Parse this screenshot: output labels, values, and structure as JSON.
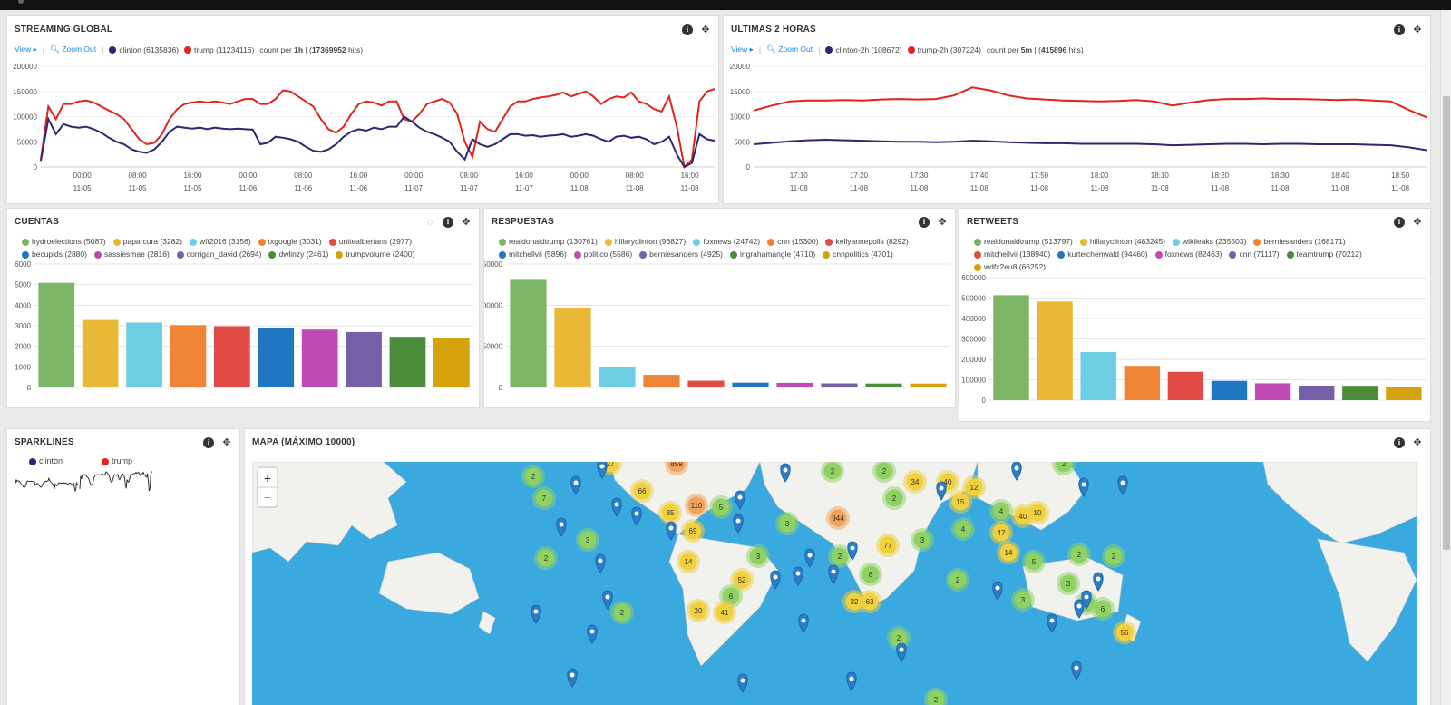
{
  "colors": {
    "clinton": "#2a2870",
    "trump": "#e2231a",
    "accent": "#1e88e5",
    "palette": [
      "#7bb565",
      "#e9b837",
      "#6dcde3",
      "#ef8436",
      "#e04b45",
      "#1f77c2",
      "#c04bb6",
      "#7660a8",
      "#4a8c3a",
      "#d4a20c"
    ]
  },
  "streaming": {
    "title": "STREAMING GLOBAL",
    "view": "View",
    "zoom": "Zoom Out",
    "s1": "clinton (6135836)",
    "s2": "trump (11234116)",
    "count_pre": "count per ",
    "count_unit": "1h",
    "count_mid": " | (",
    "hits": "17369952",
    "count_post": " hits)"
  },
  "last2h": {
    "title": "ULTIMAS 2 HORAS",
    "view": "View",
    "zoom": "Zoom Out",
    "s1": "clinton-2h (108672)",
    "s2": "trump-2h (307224)",
    "count_pre": "count per ",
    "count_unit": "5m",
    "count_mid": " | (",
    "hits": "415896",
    "count_post": " hits)"
  },
  "cuentas": {
    "title": "CUENTAS",
    "legend": [
      "hydroelections (5087)",
      "paparcura (3282)",
      "wft2016 (3156)",
      "txgoogle (3031)",
      "unitealbertans (2977)",
      "becupids (2880)",
      "sassiesmae (2816)",
      "corrigan_david (2694)",
      "dwlinzy (2461)",
      "trumpvolume (2400)"
    ]
  },
  "respuestas": {
    "title": "RESPUESTAS",
    "legend": [
      "realdonaldtrump (130761)",
      "hillaryclinton (96827)",
      "foxnews (24742)",
      "cnn (15300)",
      "kellyannepolls (8292)",
      "mitchellvii (5896)",
      "politico (5586)",
      "berniesanders (4925)",
      "ingrahamangle (4710)",
      "cnnpolitics (4701)"
    ]
  },
  "retweets": {
    "title": "RETWEETS",
    "legend": [
      "realdonaldtrump (513797)",
      "hillaryclinton (483245)",
      "wikileaks (235503)",
      "berniesanders (168171)",
      "mitchellvii (138940)",
      "kurteichenwald (94460)",
      "foxnews (82463)",
      "cnn (71117)",
      "teamtrump (70212)",
      "wdfx2eu8 (66252)"
    ]
  },
  "sparklines": {
    "title": "SPARKLINES",
    "s1": "clinton",
    "s2": "trump"
  },
  "map": {
    "title": "MAPA (MÁXIMO 10000)",
    "zoom_in": "+",
    "zoom_out": "−",
    "clusters": [
      {
        "n": "27"
      },
      {
        "n": "859"
      },
      {
        "n": "2"
      },
      {
        "n": "7"
      },
      {
        "n": "66"
      },
      {
        "n": "35"
      },
      {
        "n": "110"
      },
      {
        "n": "5"
      },
      {
        "n": "69"
      },
      {
        "n": "3"
      },
      {
        "n": "2"
      },
      {
        "n": "14"
      },
      {
        "n": "3"
      },
      {
        "n": "52"
      },
      {
        "n": "6"
      },
      {
        "n": "20"
      },
      {
        "n": "41"
      },
      {
        "n": "2"
      },
      {
        "n": "3"
      },
      {
        "n": "944"
      },
      {
        "n": "2"
      },
      {
        "n": "2"
      },
      {
        "n": "34"
      },
      {
        "n": "40"
      },
      {
        "n": "12"
      },
      {
        "n": "15"
      },
      {
        "n": "2"
      },
      {
        "n": "4"
      },
      {
        "n": "4"
      },
      {
        "n": "47"
      },
      {
        "n": "40"
      },
      {
        "n": "10"
      },
      {
        "n": "77"
      },
      {
        "n": "3"
      },
      {
        "n": "2"
      },
      {
        "n": "8"
      },
      {
        "n": "32"
      },
      {
        "n": "63"
      },
      {
        "n": "2"
      },
      {
        "n": "5"
      },
      {
        "n": "14"
      },
      {
        "n": "2"
      },
      {
        "n": "2"
      },
      {
        "n": "3"
      },
      {
        "n": "3"
      },
      {
        "n": "2"
      },
      {
        "n": "6"
      },
      {
        "n": "56"
      },
      {
        "n": "2"
      },
      {
        "n": "2"
      },
      {
        "n": "2"
      }
    ]
  },
  "chart_data": [
    {
      "type": "line",
      "title": "STREAMING GLOBAL",
      "x_ticks": [
        [
          "00:00",
          "11-05"
        ],
        [
          "08:00",
          "11-05"
        ],
        [
          "16:00",
          "11-05"
        ],
        [
          "00:00",
          "11-06"
        ],
        [
          "08:00",
          "11-06"
        ],
        [
          "16:00",
          "11-06"
        ],
        [
          "00:00",
          "11-07"
        ],
        [
          "08:00",
          "11-07"
        ],
        [
          "16:00",
          "11-07"
        ],
        [
          "00:00",
          "11-08"
        ],
        [
          "08:00",
          "11-08"
        ],
        [
          "16:00",
          "11-08"
        ]
      ],
      "y_ticks": [
        "200000",
        "150000",
        "100000",
        "50000",
        "0"
      ],
      "ylim": [
        0,
        200000
      ],
      "series": [
        {
          "name": "trump",
          "values": [
            15000,
            120000,
            95000,
            125000,
            125000,
            130000,
            132000,
            128000,
            120000,
            112000,
            105000,
            95000,
            75000,
            55000,
            45000,
            48000,
            65000,
            95000,
            115000,
            125000,
            128000,
            130000,
            128000,
            130000,
            128000,
            125000,
            130000,
            135000,
            135000,
            125000,
            125000,
            135000,
            152000,
            150000,
            140000,
            130000,
            120000,
            95000,
            75000,
            68000,
            80000,
            105000,
            125000,
            130000,
            128000,
            122000,
            130000,
            130000,
            95000,
            90000,
            105000,
            125000,
            130000,
            135000,
            128000,
            105000,
            50000,
            20000,
            90000,
            75000,
            70000,
            95000,
            120000,
            130000,
            130000,
            135000,
            138000,
            140000,
            143000,
            148000,
            140000,
            145000,
            150000,
            140000,
            125000,
            135000,
            140000,
            138000,
            148000,
            130000,
            125000,
            115000,
            110000,
            140000,
            80000,
            0,
            15000,
            130000,
            150000,
            155000
          ]
        },
        {
          "name": "clinton",
          "values": [
            12000,
            95000,
            65000,
            85000,
            80000,
            78000,
            80000,
            75000,
            68000,
            58000,
            50000,
            45000,
            35000,
            30000,
            28000,
            35000,
            50000,
            70000,
            80000,
            78000,
            76000,
            78000,
            75000,
            78000,
            76000,
            75000,
            76000,
            75000,
            74000,
            45000,
            48000,
            60000,
            58000,
            55000,
            50000,
            40000,
            32000,
            30000,
            35000,
            45000,
            60000,
            70000,
            75000,
            72000,
            78000,
            75000,
            80000,
            80000,
            100000,
            90000,
            78000,
            70000,
            65000,
            58000,
            50000,
            30000,
            15000,
            55000,
            45000,
            40000,
            45000,
            55000,
            65000,
            65000,
            62000,
            63000,
            60000,
            62000,
            63000,
            65000,
            60000,
            62000,
            65000,
            62000,
            55000,
            50000,
            60000,
            62000,
            58000,
            60000,
            55000,
            45000,
            50000,
            60000,
            25000,
            0,
            8000,
            65000,
            55000,
            52000
          ]
        }
      ]
    },
    {
      "type": "line",
      "title": "ULTIMAS 2 HORAS",
      "x_ticks": [
        [
          "17:10",
          "11-08"
        ],
        [
          "17:20",
          "11-08"
        ],
        [
          "17:30",
          "11-08"
        ],
        [
          "17:40",
          "11-08"
        ],
        [
          "17:50",
          "11-08"
        ],
        [
          "18:00",
          "11-08"
        ],
        [
          "18:10",
          "11-08"
        ],
        [
          "18:20",
          "11-08"
        ],
        [
          "18:30",
          "11-08"
        ],
        [
          "18:40",
          "11-08"
        ],
        [
          "18:50",
          "11-08"
        ]
      ],
      "y_ticks": [
        "20000",
        "15000",
        "10000",
        "5000",
        "0"
      ],
      "ylim": [
        0,
        20000
      ],
      "series": [
        {
          "name": "trump-2h",
          "values": [
            11200,
            12200,
            13000,
            13200,
            13200,
            13300,
            13200,
            13400,
            13500,
            13400,
            13500,
            14200,
            15800,
            15200,
            14200,
            13600,
            13400,
            13200,
            13100,
            13000,
            13100,
            13300,
            13000,
            12200,
            12800,
            13300,
            13500,
            13500,
            13600,
            13500,
            13500,
            13400,
            13300,
            13400,
            13200,
            13000,
            11300,
            9800
          ]
        },
        {
          "name": "clinton-2h",
          "values": [
            4500,
            4800,
            5100,
            5300,
            5400,
            5300,
            5200,
            5100,
            5000,
            5000,
            4900,
            5000,
            5200,
            5100,
            4900,
            4800,
            4700,
            4700,
            4600,
            4600,
            4600,
            4600,
            4500,
            4300,
            4400,
            4500,
            4600,
            4600,
            4500,
            4600,
            4600,
            4500,
            4500,
            4500,
            4400,
            4300,
            3900,
            3300
          ]
        }
      ]
    },
    {
      "type": "bar",
      "title": "CUENTAS",
      "categories": [
        "hydroelections",
        "paparcura",
        "wft2016",
        "txgoogle",
        "unitealbertans",
        "becupids",
        "sassiesmae",
        "corrigan_david",
        "dwlinzy",
        "trumpvolume"
      ],
      "values": [
        5087,
        3282,
        3156,
        3031,
        2977,
        2880,
        2816,
        2694,
        2461,
        2400
      ],
      "y_ticks": [
        "6000",
        "5000",
        "4000",
        "3000",
        "2000",
        "1000",
        "0"
      ],
      "ylim": [
        0,
        6000
      ]
    },
    {
      "type": "bar",
      "title": "RESPUESTAS",
      "categories": [
        "realdonaldtrump",
        "hillaryclinton",
        "foxnews",
        "cnn",
        "kellyannepolls",
        "mitchellvii",
        "politico",
        "berniesanders",
        "ingrahamangle",
        "cnnpolitics"
      ],
      "values": [
        130761,
        96827,
        24742,
        15300,
        8292,
        5896,
        5586,
        4925,
        4710,
        4701
      ],
      "y_ticks": [
        "150000",
        "100000",
        "50000",
        "0"
      ],
      "ylim": [
        0,
        150000
      ]
    },
    {
      "type": "bar",
      "title": "RETWEETS",
      "categories": [
        "realdonaldtrump",
        "hillaryclinton",
        "wikileaks",
        "berniesanders",
        "mitchellvii",
        "kurteichenwald",
        "foxnews",
        "cnn",
        "teamtrump",
        "wdfx2eu8"
      ],
      "values": [
        513797,
        483245,
        235503,
        168171,
        138940,
        94460,
        82463,
        71117,
        70212,
        66252
      ],
      "y_ticks": [
        "600000",
        "500000",
        "400000",
        "300000",
        "200000",
        "100000",
        "0"
      ],
      "ylim": [
        0,
        600000
      ]
    }
  ]
}
